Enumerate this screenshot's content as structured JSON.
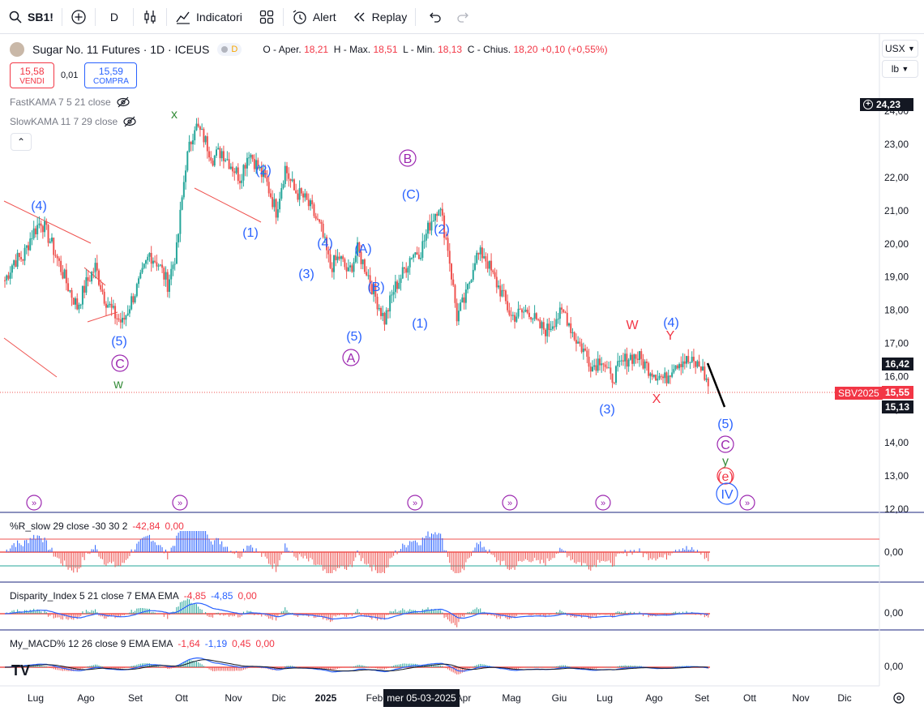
{
  "toolbar": {
    "symbol": "SB1!",
    "interval": "D",
    "indicators_label": "Indicatori",
    "alert_label": "Alert",
    "replay_label": "Replay"
  },
  "legend": {
    "title": "Sugar No. 11 Futures · 1D · ICEUS",
    "badge": "D",
    "o_label": "O - Aper.",
    "o": "18,21",
    "h_label": "H - Max.",
    "h": "18,51",
    "l_label": "L - Min.",
    "l": "18,13",
    "c_label": "C - Chius.",
    "c": "18,20",
    "change": "+0,10 (+0,55%)"
  },
  "trade": {
    "sell_price": "15,58",
    "sell_label": "VENDI",
    "spread": "0,01",
    "buy_price": "15,59",
    "buy_label": "COMPRA"
  },
  "indicators": {
    "fast": "FastKAMA 7 5 21 close",
    "slow": "SlowKAMA 11 7 29 close"
  },
  "axis": {
    "currency": "USX",
    "unit": "lb",
    "price_ticks": [
      "24,00",
      "23,00",
      "22,00",
      "21,00",
      "20,00",
      "19,00",
      "18,00",
      "17,00",
      "16,00",
      "15,00",
      "14,00",
      "13,00",
      "12,00"
    ],
    "time_ticks": [
      "Lug",
      "Ago",
      "Set",
      "Ott",
      "Nov",
      "Dic",
      "2025",
      "Feb",
      "Apr",
      "Mag",
      "Giu",
      "Lug",
      "Ago",
      "Set",
      "Ott",
      "Nov",
      "Dic"
    ],
    "crosshair_date": "mer 05-03-2025"
  },
  "price_tags": {
    "high": "24,23",
    "level1": "16,42",
    "contract_label": "SBV2025",
    "last": "15,55",
    "level2": "15,13"
  },
  "panes": {
    "r": {
      "name": "%R_slow 29 close -30 30 2",
      "v1": "-42,84",
      "v2": "0,00",
      "axis": "0,00"
    },
    "disp": {
      "name": "Disparity_Index 5 21 close 7 EMA EMA",
      "v1": "-4,85",
      "v2": "-4,85",
      "v3": "0,00",
      "axis": "0,00"
    },
    "macd": {
      "name": "My_MACD% 12 26 close 9 EMA EMA",
      "v1": "-1,64",
      "v2": "-1,19",
      "v3": "0,45",
      "v4": "0,00",
      "axis": "0,00"
    }
  },
  "wave_labels": {
    "l4a": "(4)",
    "l5a": "(5)",
    "cA": "C",
    "w": "w",
    "x": "x",
    "l2a": "(2)",
    "l1a": "(1)",
    "l3a": "(3)",
    "l4b": "(4)",
    "l5b": "(5)",
    "AA": "A",
    "pA": "(A)",
    "pB": "(B)",
    "B": "B",
    "pC": "(C)",
    "l1b": "(1)",
    "l2b": "(2)",
    "l3b": "(3)",
    "W": "W",
    "X": "X",
    "Y": "Y",
    "l4c": "(4)",
    "l5c": "(5)",
    "cC": "C",
    "y": "y",
    "e": "(e)",
    "IV": "IV"
  },
  "colors": {
    "up": "#26a69a",
    "down": "#ef5350",
    "blue": "#2962ff",
    "purple": "#9c27b0",
    "green": "#388e3c",
    "red": "#f23645",
    "navy": "#1a237e"
  },
  "chart_data": {
    "type": "candlestick",
    "series": [
      {
        "name": "Sugar No. 11 Futures",
        "values": [
          18.9,
          19.5,
          19.6,
          20.3,
          20.7,
          20.1,
          19.4,
          18.7,
          18.1,
          18.8,
          19.3,
          18.4,
          17.9,
          17.6,
          18.3,
          18.9,
          19.7,
          19.4,
          18.8,
          19.8,
          22.4,
          23.6,
          23.2,
          22.6,
          22.8,
          22.4,
          22.0,
          22.8,
          22.3,
          21.8,
          21.0,
          22.3,
          21.6,
          21.4,
          21.0,
          20.4,
          19.3,
          19.6,
          19.1,
          19.8,
          19.2,
          18.4,
          17.7,
          18.6,
          19.1,
          19.7,
          19.8,
          20.6,
          21.2,
          19.9,
          17.8,
          18.4,
          19.6,
          19.7,
          19.0,
          18.5,
          17.8,
          17.9,
          18.0,
          17.5,
          17.4,
          17.8,
          17.9,
          17.2,
          16.8,
          16.3,
          16.6,
          15.9,
          16.3,
          16.6,
          16.6,
          16.3,
          16.1,
          15.9,
          16.4,
          16.5,
          16.4,
          16.3,
          15.6
        ]
      }
    ],
    "ylim": [
      12,
      24.23
    ]
  }
}
